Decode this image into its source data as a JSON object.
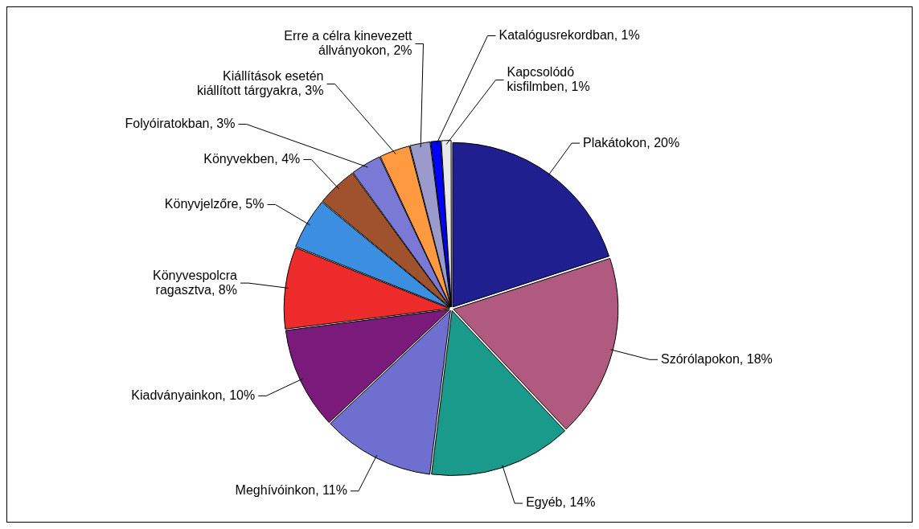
{
  "chart_data": {
    "type": "pie",
    "categories": [
      "Plakátokon",
      "Szórólapokon",
      "Egyéb",
      "Meghívóinkon",
      "Kiadványainkon",
      "Könyvespolcra ragasztva",
      "Könyvjelzőre",
      "Könyvekben",
      "Folyóiratokban",
      "Kiállítások esetén kiállított tárgyakra",
      "Erre a célra kinevezett állványokon",
      "Katalógusrekordban",
      "Kapcsolódó kisfilmben"
    ],
    "values": [
      20,
      18,
      14,
      11,
      10,
      8,
      5,
      4,
      3,
      3,
      2,
      1,
      1
    ],
    "value_labels": [
      "20%",
      "18%",
      "14%",
      "11%",
      "10%",
      "8%",
      "5%",
      "4%",
      "3%",
      "3%",
      "2%",
      "1%",
      "1%"
    ],
    "colors": [
      "#1f1f8f",
      "#b05a80",
      "#1a9a8a",
      "#6f6fd0",
      "#7a1a7a",
      "#ee2b2b",
      "#3b8ee0",
      "#a0522d",
      "#7a7ad6",
      "#ff9a40",
      "#9a9acc",
      "#0000ff",
      "#e8e8e8"
    ],
    "legend": false
  }
}
